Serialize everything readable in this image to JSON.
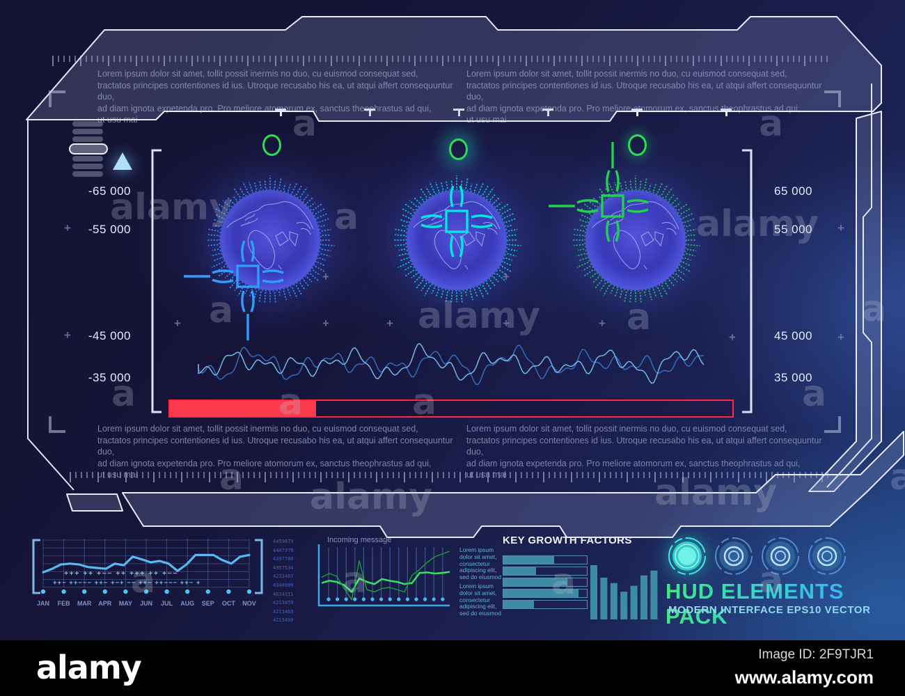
{
  "watermark": {
    "brand": "alamy",
    "letter": "a",
    "image_id": "Image ID: 2F9TJR1",
    "website": "www.alamy.com"
  },
  "branding": {
    "title": "HUD ELEMENTS PACK",
    "subtitle": "MODERN INTERFACE EPS10 VECTOR"
  },
  "hud": {
    "lorem_paragraph": "Lorem ipsum dolor sit amet, tollit possit inermis no duo, cu euismod consequat sed,\ntractatos principes contentiones id ius. Utroque recusabo his ea, ut atqui affert consequuntur duo,\nad diam ignota expetenda pro. Pro meliore atomorum ex, sanctus theophrastus ad qui,\nut usu mai",
    "scale_left": [
      "-65 000",
      "-55 000",
      "-45 000",
      "-35 000"
    ],
    "scale_right": [
      "65 000",
      "55 000",
      "45 000",
      "35 000"
    ],
    "progress_pct": 26,
    "progress_color": "#fb3b4e",
    "globes": [
      {
        "name": "globe-blue",
        "tick_color": "#2f9dff",
        "crosshair_color": "#2f9dff",
        "crosshair_offset": [
          -32,
          52
        ],
        "rails": [
          "down",
          "left"
        ],
        "marker_color": "#2ae052"
      },
      {
        "name": "globe-cyan",
        "tick_color": "#00e0d8",
        "crosshair_color": "#00e8e0",
        "crosshair_offset": [
          0,
          -27
        ],
        "rails": [],
        "marker_color": "#2ae052"
      },
      {
        "name": "globe-green",
        "tick_color": "#23d24b",
        "crosshair_color": "#23d24b",
        "crosshair_offset": [
          -33,
          -49
        ],
        "rails": [
          "up",
          "left"
        ],
        "marker_color": "#2ae052"
      }
    ]
  },
  "chart_data": [
    {
      "name": "monthly-trend",
      "type": "line",
      "categories": [
        "JAN",
        "FEB",
        "MAR",
        "APR",
        "MAY",
        "JUN",
        "JUL",
        "AUG",
        "SEP",
        "OCT",
        "NOV"
      ],
      "values": [
        32,
        40,
        50,
        52,
        50,
        44,
        42,
        40,
        52,
        48,
        68,
        62,
        55,
        58,
        52,
        35,
        50,
        72,
        72,
        72,
        60,
        52,
        68,
        72
      ],
      "ylim": [
        0,
        100
      ],
      "grid": true,
      "line_color": "#58b8f0",
      "annotations_row1": [
        "+++",
        "++",
        "+−−",
        "++",
        "+++",
        "++",
        "+−−"
      ],
      "annotations_row2": [
        "++−",
        "++−−−",
        "++−",
        "+−+",
        "−−",
        "++−",
        "++−−−",
        "++−",
        "+"
      ],
      "right_axis_labels": [
        "4459879",
        "4447978",
        "4397780",
        "4957534",
        "4233467",
        "4346989",
        "4634311",
        "4213459",
        "4213469",
        "4213409"
      ]
    },
    {
      "name": "incoming-message",
      "type": "line",
      "title": "Incoming message",
      "ylim": [
        0,
        100
      ],
      "grid": "vertical",
      "series": [
        {
          "name": "signal-bright",
          "color": "#35e060",
          "values": [
            38,
            42,
            40,
            34,
            22,
            46,
            40,
            36,
            45,
            42,
            40,
            36,
            38,
            56,
            57,
            55,
            56,
            58
          ]
        },
        {
          "name": "signal-dark",
          "color": "#1f9e3a",
          "values": [
            48,
            55,
            50,
            28,
            8,
            78,
            26,
            22,
            28,
            30,
            26,
            22,
            52,
            62,
            75,
            85,
            90,
            95
          ]
        }
      ]
    },
    {
      "name": "key-growth-factors",
      "type": "bar",
      "orientation": "horizontal",
      "title": "KEY GROWTH FACTORS",
      "values_pct": [
        61,
        39,
        77,
        90,
        37
      ],
      "bar_color": "#3e8ba4",
      "side_note": "Lorem ipsum\ndolor sit amet,\nconsectetur\nadipiscing elit,\nsed do eiusmod"
    },
    {
      "name": "growth-columns",
      "type": "bar",
      "orientation": "vertical",
      "values": [
        100,
        77,
        67,
        51,
        62,
        81,
        90
      ],
      "ylim": [
        0,
        100
      ],
      "bar_color": "#3e8ba4"
    },
    {
      "name": "signal-waveform",
      "type": "line",
      "style": "decorative-oscilloscope",
      "colors": [
        "#3f7fd9",
        "#79c0f2"
      ]
    }
  ]
}
